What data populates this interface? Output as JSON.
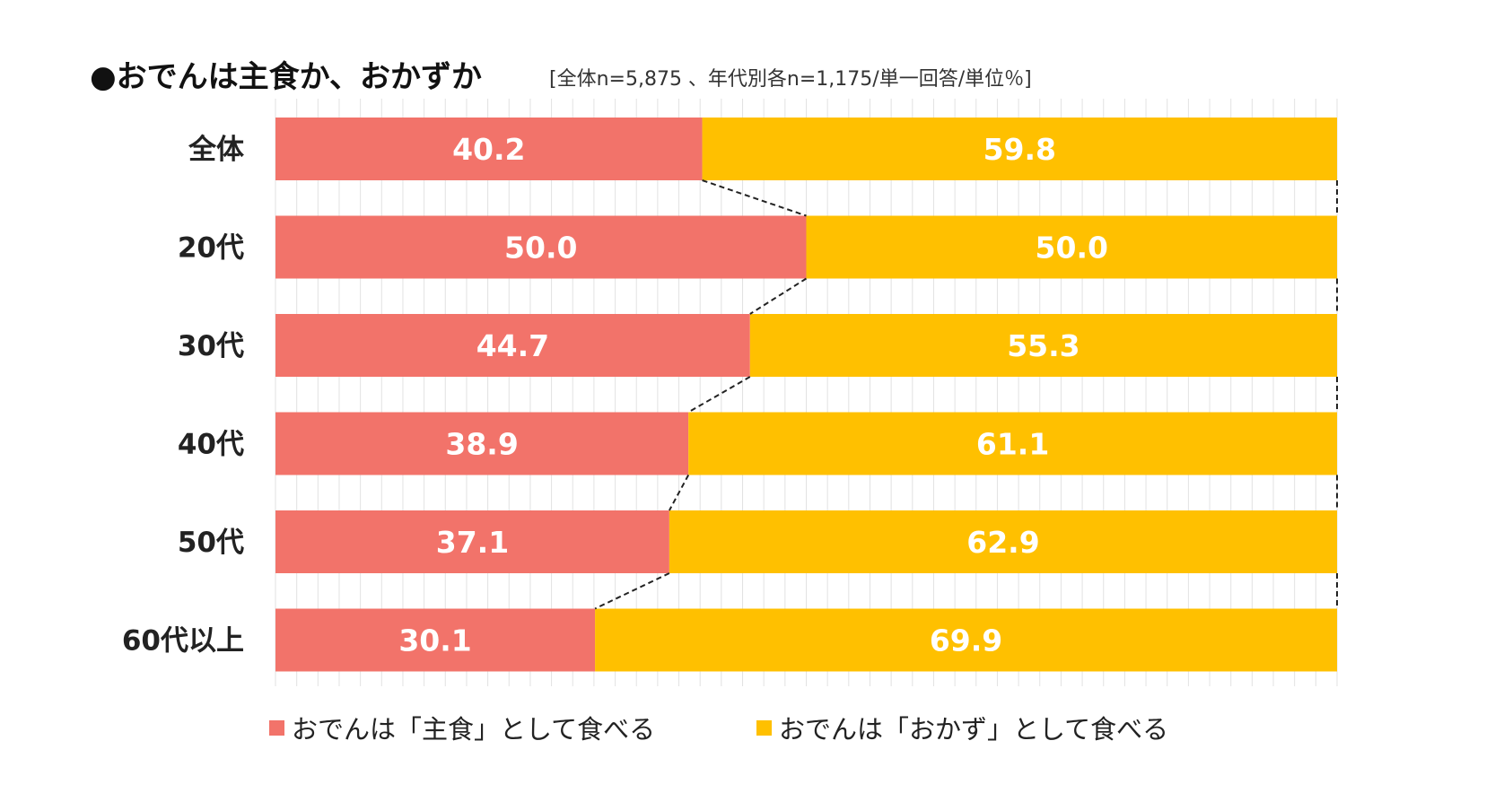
{
  "chart_data": {
    "type": "bar",
    "orientation": "horizontal",
    "stacked": true,
    "title": "●おでんは主食か、おかずか",
    "subtitle": "[全体n=5,875 、年代別各n=1,175/単一回答/単位％]",
    "categories": [
      "全体",
      "20代",
      "30代",
      "40代",
      "50代",
      "60代以上"
    ],
    "series": [
      {
        "name": "おでんは「主食」として食べる",
        "color": "#f2736a",
        "values": [
          40.2,
          50.0,
          44.7,
          38.9,
          37.1,
          30.1
        ],
        "labels": [
          "40.2",
          "50.0",
          "44.7",
          "38.9",
          "37.1",
          "30.1"
        ]
      },
      {
        "name": "おでんは「おかず」として食べる",
        "color": "#ffc000",
        "values": [
          59.8,
          50.0,
          55.3,
          61.1,
          62.9,
          69.9
        ],
        "labels": [
          "59.8",
          "50.0",
          "55.3",
          "61.1",
          "62.9",
          "69.9"
        ]
      }
    ],
    "xlim": [
      0,
      100
    ],
    "grid": true,
    "connector_lines": "dashed",
    "legend_position": "bottom"
  }
}
